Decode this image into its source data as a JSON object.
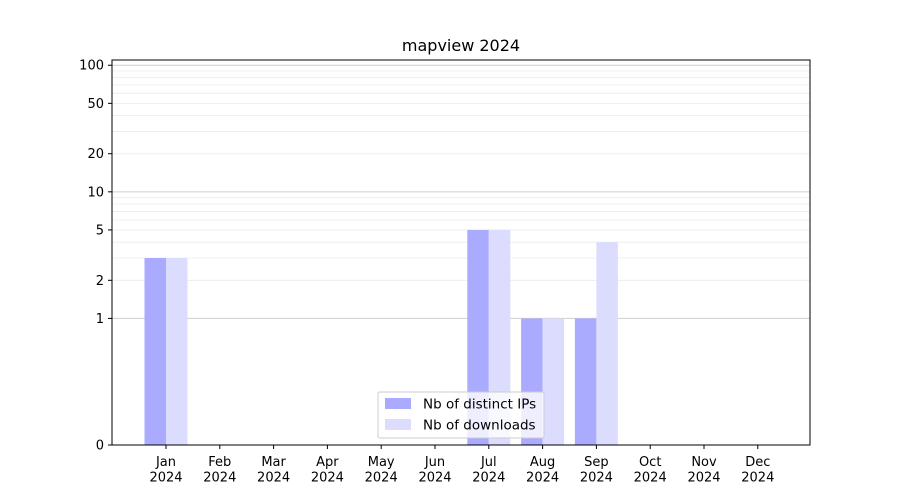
{
  "chart_data": {
    "type": "bar",
    "title": "mapview 2024",
    "xlabel": "",
    "ylabel": "",
    "scale": "symlog",
    "categories": [
      "Jan\n2024",
      "Feb\n2024",
      "Mar\n2024",
      "Apr\n2024",
      "May\n2024",
      "Jun\n2024",
      "Jul\n2024",
      "Aug\n2024",
      "Sep\n2024",
      "Oct\n2024",
      "Nov\n2024",
      "Dec\n2024"
    ],
    "series": [
      {
        "name": "Nb of distinct IPs",
        "color": "#aaaaff",
        "values": [
          3,
          0,
          0,
          0,
          0,
          0,
          5,
          1,
          1,
          0,
          0,
          0
        ]
      },
      {
        "name": "Nb of downloads",
        "color": "#dcdcff",
        "values": [
          3,
          0,
          0,
          0,
          0,
          0,
          5,
          1,
          4,
          0,
          0,
          0
        ]
      }
    ],
    "yticks": [
      0,
      1,
      2,
      5,
      10,
      20,
      50,
      100
    ],
    "ylim": [
      0,
      110
    ],
    "grid": true,
    "legend_position": "lower-center"
  }
}
